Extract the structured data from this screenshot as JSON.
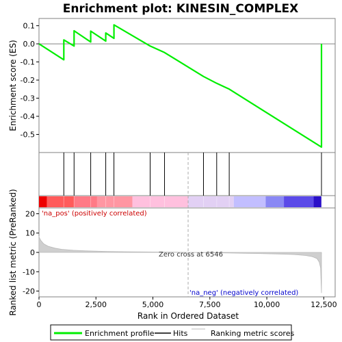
{
  "chart_data": {
    "type": "line",
    "title": "Enrichment plot: KINESIN_COMPLEX",
    "x_label": "Rank in Ordered Dataset",
    "es_axis": {
      "label": "Enrichment score (ES)",
      "range": [
        -0.6,
        0.14
      ],
      "ticks": [
        0.1,
        0.0,
        -0.1,
        -0.2,
        -0.3,
        -0.4,
        -0.5
      ],
      "tick_labels": [
        "0.1",
        "0.0",
        "-0.1",
        "-0.2",
        "-0.3",
        "-0.4",
        "-0.5"
      ]
    },
    "metric_axis": {
      "label": "Ranked list metric (PreRanked)",
      "range": [
        -23,
        23
      ],
      "ticks": [
        20,
        10,
        0,
        -10,
        -20
      ],
      "tick_labels": [
        "20",
        "10",
        "0",
        "-10",
        "-20"
      ]
    },
    "x_axis": {
      "range": [
        0,
        13000
      ],
      "ticks": [
        0,
        2500,
        5000,
        7500,
        10000,
        12500
      ],
      "tick_labels": [
        "0",
        "2,500",
        "5,000",
        "7,500",
        "10,000",
        "12,500"
      ]
    },
    "series": [
      {
        "name": "Enrichment profile",
        "color": "#00ee00",
        "x": [
          0,
          1090,
          1091,
          1540,
          1541,
          2270,
          2271,
          2930,
          2931,
          3290,
          3291,
          4880,
          5510,
          7220,
          7800,
          8350,
          12400,
          12401
        ],
        "y": [
          0.0,
          -0.088,
          0.022,
          -0.012,
          0.072,
          0.01,
          0.07,
          0.015,
          0.06,
          0.03,
          0.105,
          -0.012,
          -0.048,
          -0.18,
          -0.218,
          -0.25,
          -0.57,
          0.0
        ]
      }
    ],
    "hits": [
      1090,
      1540,
      2270,
      2930,
      3290,
      4880,
      5510,
      7220,
      7800,
      8350,
      12400
    ],
    "zero_cross": 6546,
    "annotations": {
      "pos_label": "'na_pos' (positively correlated)",
      "neg_label": "'na_neg' (negatively correlated)",
      "zero_cross_label": "Zero cross at 6546"
    },
    "heat_bar": {
      "breaks": [
        0,
        350,
        1550,
        2550,
        4100,
        6546,
        8550,
        9950,
        10750,
        12050,
        12400
      ],
      "colors": [
        "#ee0000",
        "#ff5b5b",
        "#ff7a86",
        "#ff96a2",
        "#ffc0de",
        "#e2d0f4",
        "#c2beff",
        "#8a88f4",
        "#5b4ae8",
        "#2a10c8"
      ]
    },
    "metric_profile": [
      [
        0,
        8.5
      ],
      [
        20,
        7.5
      ],
      [
        80,
        6.2
      ],
      [
        200,
        4.5
      ],
      [
        400,
        3.2
      ],
      [
        700,
        2.2
      ],
      [
        1000,
        1.6
      ],
      [
        1500,
        1.1
      ],
      [
        2000,
        0.8
      ],
      [
        3000,
        0.5
      ],
      [
        4000,
        0.3
      ],
      [
        5000,
        0.2
      ],
      [
        6000,
        0.1
      ],
      [
        6546,
        0.0
      ],
      [
        7500,
        -0.15
      ],
      [
        8500,
        -0.35
      ],
      [
        9500,
        -0.55
      ],
      [
        10500,
        -0.8
      ],
      [
        11200,
        -1.1
      ],
      [
        11700,
        -1.6
      ],
      [
        12000,
        -2.2
      ],
      [
        12200,
        -3.2
      ],
      [
        12300,
        -5.0
      ],
      [
        12360,
        -8.0
      ],
      [
        12400,
        -21.0
      ]
    ],
    "legend": [
      {
        "label": "Enrichment profile",
        "color": "#00ee00"
      },
      {
        "label": "Hits",
        "color": "#000000"
      },
      {
        "label": "Ranking metric scores",
        "color": "#bbbbbb"
      }
    ]
  }
}
